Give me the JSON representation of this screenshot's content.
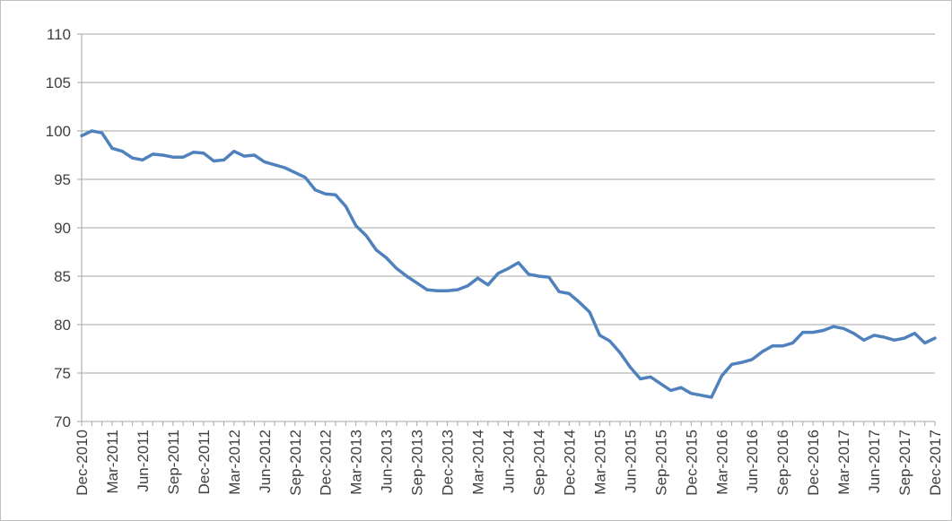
{
  "chart_data": {
    "type": "line",
    "title": "",
    "xlabel": "",
    "ylabel": "",
    "ylim": [
      70,
      110
    ],
    "y_ticks": [
      70,
      75,
      80,
      85,
      90,
      95,
      100,
      105,
      110
    ],
    "grid": true,
    "legend": "none",
    "series_color": "#4f81bd",
    "x_tick_labels": [
      "Dec-2010",
      "Mar-2011",
      "Jun-2011",
      "Sep-2011",
      "Dec-2011",
      "Mar-2012",
      "Jun-2012",
      "Sep-2012",
      "Dec-2012",
      "Mar-2013",
      "Jun-2013",
      "Sep-2013",
      "Dec-2013",
      "Mar-2014",
      "Jun-2014",
      "Sep-2014",
      "Dec-2014",
      "Mar-2015",
      "Jun-2015",
      "Sep-2015",
      "Dec-2015",
      "Mar-2016",
      "Jun-2016",
      "Sep-2016",
      "Dec-2016",
      "Mar-2017",
      "Jun-2017",
      "Sep-2017",
      "Dec-2017"
    ],
    "x": [
      "Dec-2010",
      "Jan-2011",
      "Feb-2011",
      "Mar-2011",
      "Apr-2011",
      "May-2011",
      "Jun-2011",
      "Jul-2011",
      "Aug-2011",
      "Sep-2011",
      "Oct-2011",
      "Nov-2011",
      "Dec-2011",
      "Jan-2012",
      "Feb-2012",
      "Mar-2012",
      "Apr-2012",
      "May-2012",
      "Jun-2012",
      "Jul-2012",
      "Aug-2012",
      "Sep-2012",
      "Oct-2012",
      "Nov-2012",
      "Dec-2012",
      "Jan-2013",
      "Feb-2013",
      "Mar-2013",
      "Apr-2013",
      "May-2013",
      "Jun-2013",
      "Jul-2013",
      "Aug-2013",
      "Sep-2013",
      "Oct-2013",
      "Nov-2013",
      "Dec-2013",
      "Jan-2014",
      "Feb-2014",
      "Mar-2014",
      "Apr-2014",
      "May-2014",
      "Jun-2014",
      "Jul-2014",
      "Aug-2014",
      "Sep-2014",
      "Oct-2014",
      "Nov-2014",
      "Dec-2014",
      "Jan-2015",
      "Feb-2015",
      "Mar-2015",
      "Apr-2015",
      "May-2015",
      "Jun-2015",
      "Jul-2015",
      "Aug-2015",
      "Sep-2015",
      "Oct-2015",
      "Nov-2015",
      "Dec-2015",
      "Jan-2016",
      "Feb-2016",
      "Mar-2016",
      "Apr-2016",
      "May-2016",
      "Jun-2016",
      "Jul-2016",
      "Aug-2016",
      "Sep-2016",
      "Oct-2016",
      "Nov-2016",
      "Dec-2016",
      "Jan-2017",
      "Feb-2017",
      "Mar-2017",
      "Apr-2017",
      "May-2017",
      "Jun-2017",
      "Jul-2017",
      "Aug-2017",
      "Sep-2017",
      "Oct-2017",
      "Nov-2017",
      "Dec-2017"
    ],
    "series": [
      {
        "values": [
          99.5,
          100,
          99.8,
          98.2,
          97.9,
          97.2,
          97.0,
          97.6,
          97.5,
          97.3,
          97.3,
          97.8,
          97.7,
          96.9,
          97.0,
          97.9,
          97.4,
          97.5,
          96.8,
          96.5,
          96.2,
          95.7,
          95.2,
          93.9,
          93.5,
          93.4,
          92.2,
          90.2,
          89.2,
          87.7,
          86.9,
          85.8,
          85.0,
          84.3,
          83.6,
          83.5,
          83.5,
          83.6,
          84.0,
          84.8,
          84.1,
          85.3,
          85.8,
          86.4,
          85.2,
          85.0,
          84.9,
          83.4,
          83.2,
          82.3,
          81.3,
          78.9,
          78.3,
          77.1,
          75.6,
          74.4,
          74.6,
          73.9,
          73.2,
          73.5,
          72.9,
          72.7,
          72.5,
          74.7,
          75.9,
          76.1,
          76.4,
          77.2,
          77.8,
          77.8,
          78.1,
          79.2,
          79.2,
          79.4,
          79.8,
          79.6,
          79.1,
          78.4,
          78.9,
          78.7,
          78.4,
          78.6,
          79.1,
          78.1,
          78.6
        ]
      }
    ]
  }
}
